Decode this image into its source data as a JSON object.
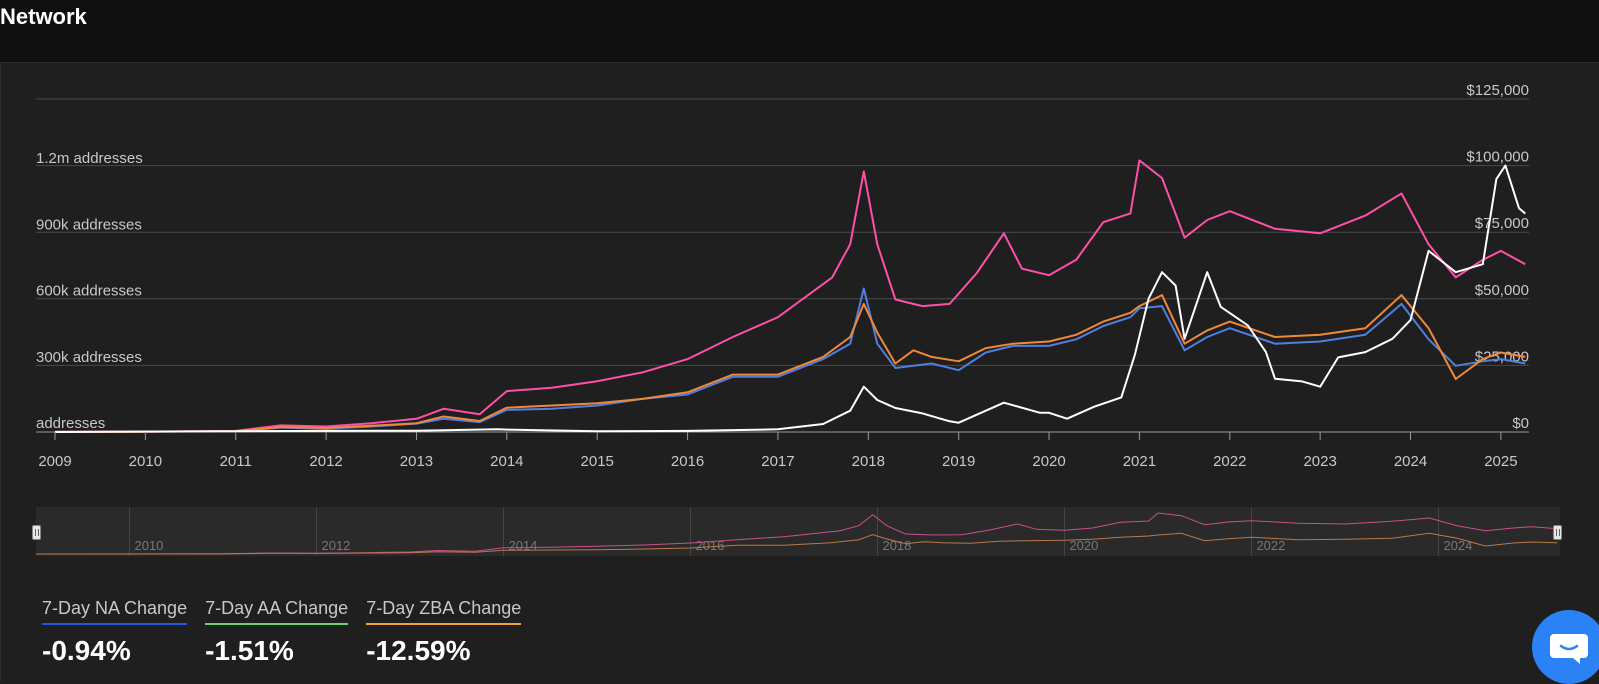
{
  "header": {
    "title": "Network"
  },
  "colors": {
    "na": "#4f7fe0",
    "aa": "#ff4fa8",
    "zba": "#f0883a",
    "price": "#ffffff",
    "stat_na": "#2a55e0",
    "stat_aa": "#6ad06a",
    "stat_zba": "#f0a03a"
  },
  "stats": [
    {
      "label": "7-Day NA Change",
      "value": "-0.94%"
    },
    {
      "label": "7-Day AA Change",
      "value": "-1.51%"
    },
    {
      "label": "7-Day ZBA Change",
      "value": "-12.59%"
    }
  ],
  "chart_data": {
    "type": "line",
    "title": "",
    "grid": true,
    "legend": "none",
    "x_ticks": [
      "2009",
      "2010",
      "2011",
      "2012",
      "2013",
      "2014",
      "2015",
      "2016",
      "2017",
      "2018",
      "2019",
      "2020",
      "2021",
      "2022",
      "2023",
      "2024",
      "2025"
    ],
    "y_left": {
      "label": "addresses",
      "range": [
        0,
        1200000
      ],
      "ticks": [
        {
          "value": 0,
          "label": "addresses"
        },
        {
          "value": 300000,
          "label": "300k addresses"
        },
        {
          "value": 600000,
          "label": "600k addresses"
        },
        {
          "value": 900000,
          "label": "900k addresses"
        },
        {
          "value": 1200000,
          "label": "1.2m addresses"
        }
      ]
    },
    "y_right": {
      "range": [
        0,
        125000
      ],
      "ticks": [
        {
          "value": 0,
          "label": "$0"
        },
        {
          "value": 25000,
          "label": "$25,000"
        },
        {
          "value": 50000,
          "label": "$50,000"
        },
        {
          "value": 75000,
          "label": "$75,000"
        },
        {
          "value": 100000,
          "label": "$100,000"
        },
        {
          "value": 125000,
          "label": "$125,000"
        }
      ]
    },
    "series": [
      {
        "key": "aa",
        "axis": "left",
        "points": [
          [
            2009,
            1000
          ],
          [
            2010,
            2000
          ],
          [
            2011,
            5000
          ],
          [
            2011.5,
            30000
          ],
          [
            2012,
            25000
          ],
          [
            2012.5,
            40000
          ],
          [
            2013,
            60000
          ],
          [
            2013.3,
            105000
          ],
          [
            2013.7,
            80000
          ],
          [
            2014,
            185000
          ],
          [
            2014.5,
            200000
          ],
          [
            2015,
            230000
          ],
          [
            2015.5,
            270000
          ],
          [
            2016,
            330000
          ],
          [
            2016.5,
            430000
          ],
          [
            2017,
            520000
          ],
          [
            2017.4,
            640000
          ],
          [
            2017.6,
            700000
          ],
          [
            2017.8,
            850000
          ],
          [
            2017.95,
            1180000
          ],
          [
            2018.1,
            850000
          ],
          [
            2018.3,
            600000
          ],
          [
            2018.6,
            570000
          ],
          [
            2018.9,
            580000
          ],
          [
            2019.2,
            720000
          ],
          [
            2019.5,
            900000
          ],
          [
            2019.7,
            740000
          ],
          [
            2020,
            710000
          ],
          [
            2020.3,
            780000
          ],
          [
            2020.6,
            950000
          ],
          [
            2020.9,
            990000
          ],
          [
            2021,
            1230000
          ],
          [
            2021.25,
            1150000
          ],
          [
            2021.5,
            880000
          ],
          [
            2021.75,
            960000
          ],
          [
            2022,
            1000000
          ],
          [
            2022.5,
            920000
          ],
          [
            2023,
            900000
          ],
          [
            2023.5,
            980000
          ],
          [
            2023.9,
            1080000
          ],
          [
            2024.2,
            850000
          ],
          [
            2024.5,
            700000
          ],
          [
            2024.8,
            780000
          ],
          [
            2025,
            820000
          ],
          [
            2025.27,
            760000
          ]
        ]
      },
      {
        "key": "na",
        "axis": "left",
        "points": [
          [
            2009,
            500
          ],
          [
            2010,
            1000
          ],
          [
            2011,
            3000
          ],
          [
            2011.5,
            20000
          ],
          [
            2012,
            15000
          ],
          [
            2012.5,
            25000
          ],
          [
            2013,
            38000
          ],
          [
            2013.3,
            60000
          ],
          [
            2013.7,
            45000
          ],
          [
            2014,
            100000
          ],
          [
            2014.5,
            105000
          ],
          [
            2015,
            120000
          ],
          [
            2015.5,
            150000
          ],
          [
            2016,
            170000
          ],
          [
            2016.5,
            250000
          ],
          [
            2017,
            250000
          ],
          [
            2017.5,
            330000
          ],
          [
            2017.8,
            400000
          ],
          [
            2017.95,
            650000
          ],
          [
            2018.1,
            400000
          ],
          [
            2018.3,
            290000
          ],
          [
            2018.7,
            310000
          ],
          [
            2019,
            280000
          ],
          [
            2019.3,
            360000
          ],
          [
            2019.6,
            390000
          ],
          [
            2020,
            390000
          ],
          [
            2020.3,
            420000
          ],
          [
            2020.6,
            480000
          ],
          [
            2020.9,
            520000
          ],
          [
            2021,
            560000
          ],
          [
            2021.25,
            570000
          ],
          [
            2021.5,
            370000
          ],
          [
            2021.75,
            430000
          ],
          [
            2022,
            470000
          ],
          [
            2022.5,
            400000
          ],
          [
            2023,
            410000
          ],
          [
            2023.5,
            440000
          ],
          [
            2023.9,
            580000
          ],
          [
            2024.2,
            420000
          ],
          [
            2024.5,
            300000
          ],
          [
            2024.8,
            320000
          ],
          [
            2025,
            330000
          ],
          [
            2025.27,
            310000
          ]
        ]
      },
      {
        "key": "zba",
        "axis": "left",
        "points": [
          [
            2009,
            500
          ],
          [
            2010,
            1000
          ],
          [
            2011,
            4000
          ],
          [
            2011.5,
            22000
          ],
          [
            2012,
            18000
          ],
          [
            2012.5,
            28000
          ],
          [
            2013,
            40000
          ],
          [
            2013.3,
            70000
          ],
          [
            2013.7,
            50000
          ],
          [
            2014,
            110000
          ],
          [
            2014.5,
            120000
          ],
          [
            2015,
            130000
          ],
          [
            2015.5,
            150000
          ],
          [
            2016,
            180000
          ],
          [
            2016.5,
            260000
          ],
          [
            2017,
            260000
          ],
          [
            2017.5,
            340000
          ],
          [
            2017.8,
            430000
          ],
          [
            2017.95,
            580000
          ],
          [
            2018.1,
            450000
          ],
          [
            2018.3,
            310000
          ],
          [
            2018.5,
            370000
          ],
          [
            2018.7,
            340000
          ],
          [
            2019,
            320000
          ],
          [
            2019.3,
            380000
          ],
          [
            2019.6,
            400000
          ],
          [
            2020,
            410000
          ],
          [
            2020.3,
            440000
          ],
          [
            2020.6,
            500000
          ],
          [
            2020.9,
            540000
          ],
          [
            2021,
            570000
          ],
          [
            2021.25,
            620000
          ],
          [
            2021.5,
            400000
          ],
          [
            2021.75,
            460000
          ],
          [
            2022,
            500000
          ],
          [
            2022.5,
            430000
          ],
          [
            2023,
            440000
          ],
          [
            2023.5,
            470000
          ],
          [
            2023.9,
            620000
          ],
          [
            2024.2,
            470000
          ],
          [
            2024.5,
            240000
          ],
          [
            2024.8,
            330000
          ],
          [
            2025,
            360000
          ],
          [
            2025.27,
            340000
          ]
        ]
      },
      {
        "key": "price",
        "axis": "right",
        "points": [
          [
            2009,
            0
          ],
          [
            2011,
            300
          ],
          [
            2012,
            400
          ],
          [
            2013,
            500
          ],
          [
            2013.9,
            1000
          ],
          [
            2014,
            900
          ],
          [
            2015,
            300
          ],
          [
            2016,
            400
          ],
          [
            2016.5,
            700
          ],
          [
            2017,
            1000
          ],
          [
            2017.5,
            3000
          ],
          [
            2017.8,
            8000
          ],
          [
            2017.95,
            17000
          ],
          [
            2018.1,
            12000
          ],
          [
            2018.3,
            9000
          ],
          [
            2018.6,
            7000
          ],
          [
            2018.9,
            4000
          ],
          [
            2019,
            3500
          ],
          [
            2019.5,
            11000
          ],
          [
            2019.9,
            7200
          ],
          [
            2020,
            7200
          ],
          [
            2020.2,
            5000
          ],
          [
            2020.5,
            9500
          ],
          [
            2020.8,
            13000
          ],
          [
            2020.95,
            29000
          ],
          [
            2021.1,
            50000
          ],
          [
            2021.25,
            60000
          ],
          [
            2021.4,
            55000
          ],
          [
            2021.5,
            35000
          ],
          [
            2021.75,
            60000
          ],
          [
            2021.9,
            47000
          ],
          [
            2022.2,
            40000
          ],
          [
            2022.4,
            30000
          ],
          [
            2022.5,
            20000
          ],
          [
            2022.8,
            19000
          ],
          [
            2023,
            17000
          ],
          [
            2023.2,
            28000
          ],
          [
            2023.5,
            30000
          ],
          [
            2023.8,
            35000
          ],
          [
            2024,
            42000
          ],
          [
            2024.2,
            68000
          ],
          [
            2024.5,
            60000
          ],
          [
            2024.8,
            63000
          ],
          [
            2024.95,
            95000
          ],
          [
            2025.05,
            100000
          ],
          [
            2025.2,
            84000
          ],
          [
            2025.27,
            82000
          ]
        ]
      }
    ]
  },
  "navigator": {
    "labels": [
      "2010",
      "2012",
      "2014",
      "2016",
      "2018",
      "2020",
      "2022",
      "2024"
    ]
  }
}
